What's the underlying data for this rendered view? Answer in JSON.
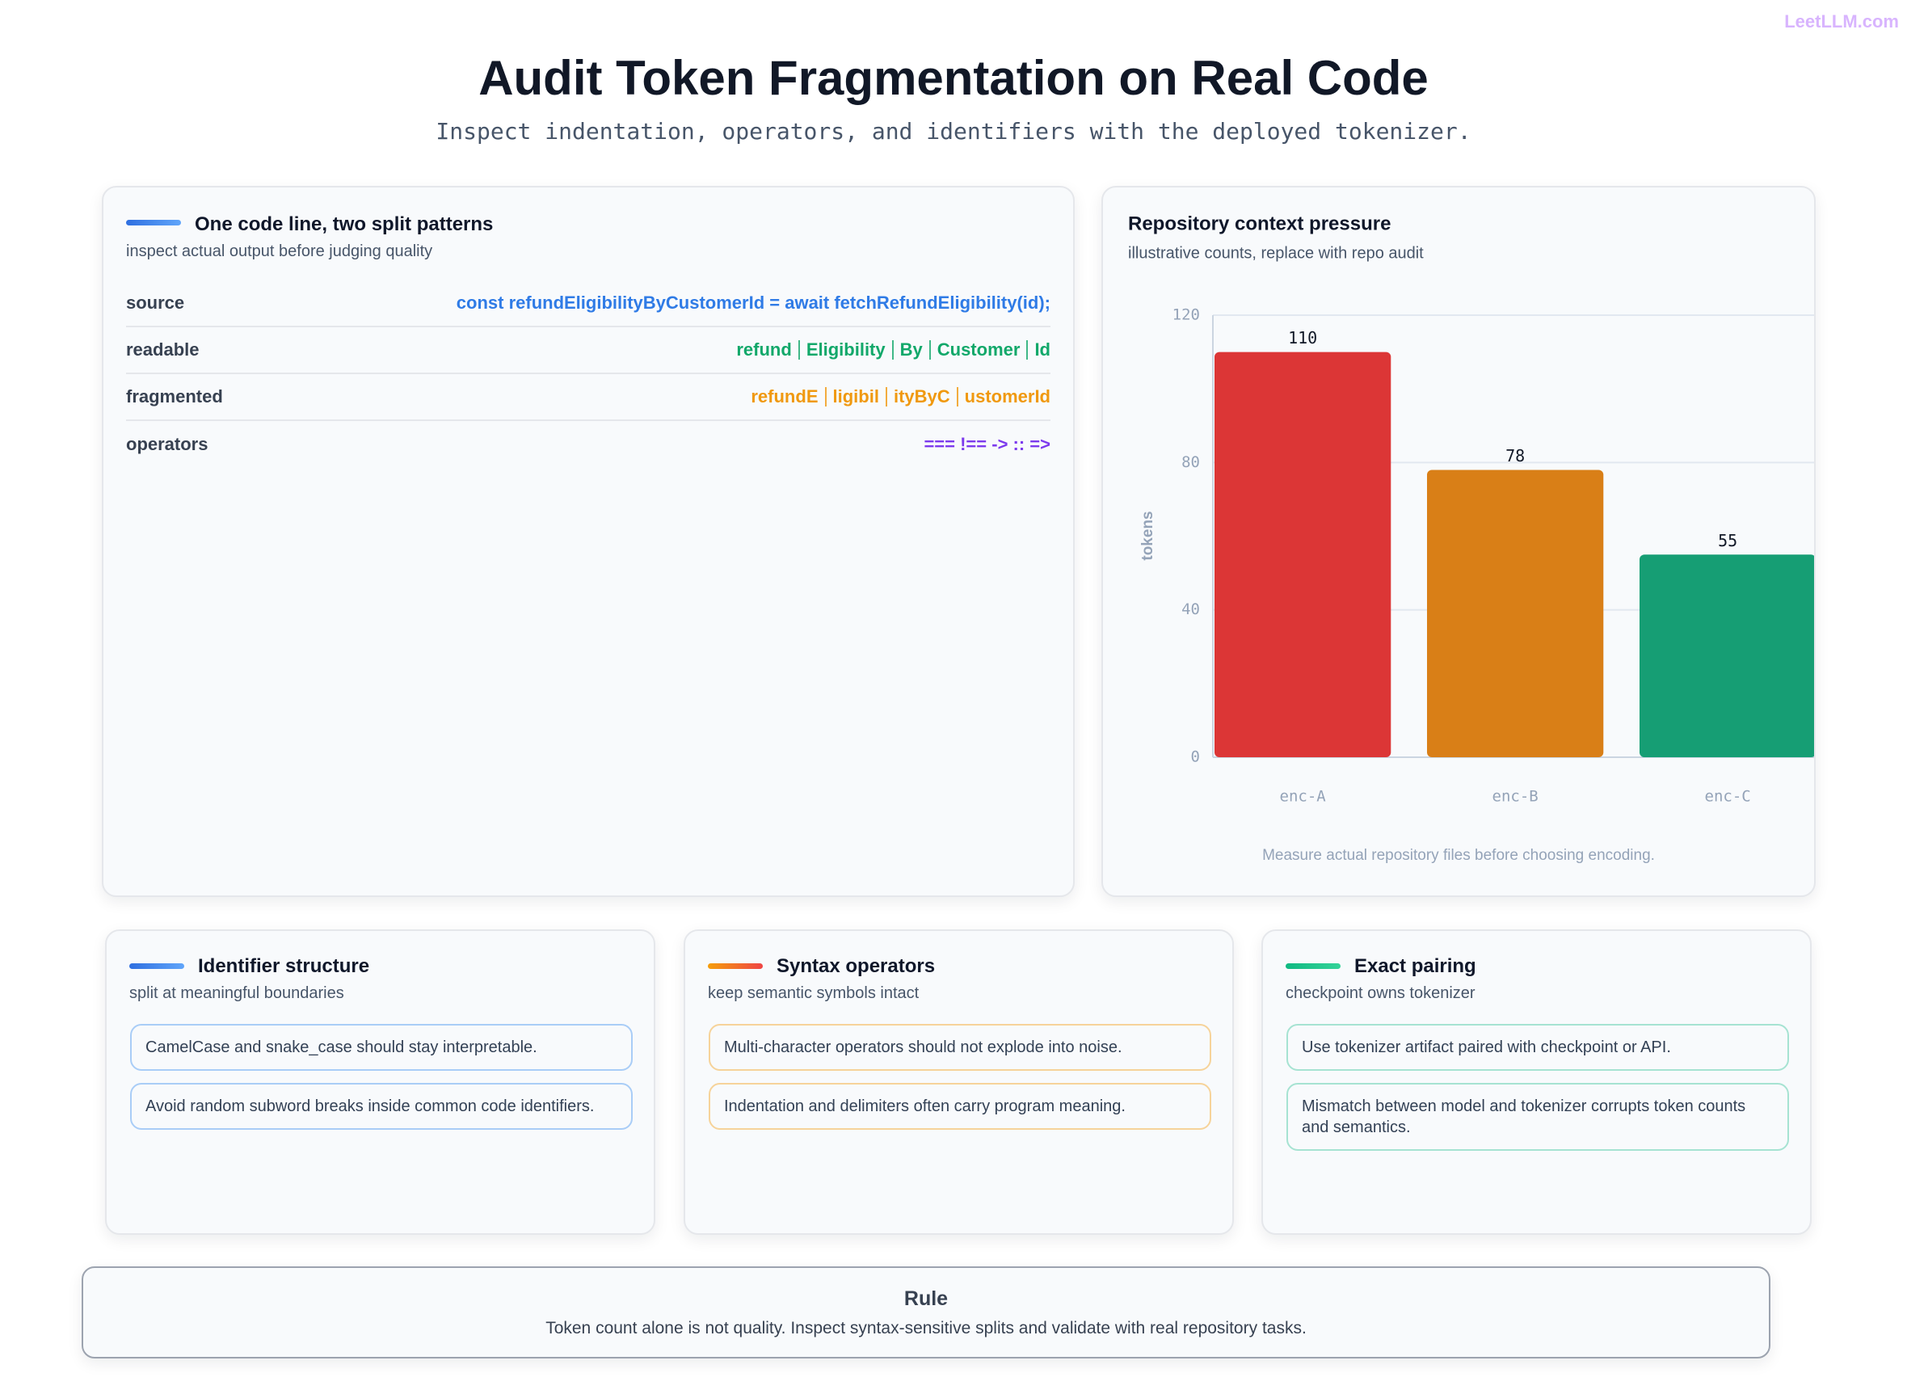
{
  "brand": "LeetLLM.com",
  "header": {
    "title": "Audit Token Fragmentation on Real Code",
    "subtitle": "Inspect indentation, operators, and identifiers with the deployed tokenizer."
  },
  "code_card": {
    "title": "One code line, two split patterns",
    "subtitle": "inspect actual output before judging quality",
    "rows": [
      {
        "label": "source",
        "color": "#2f7be6",
        "value": "const refundEligibilityByCustomerId = await fetchRefundEligibility(id);"
      },
      {
        "label": "readable",
        "color": "#12a86a",
        "tokens": [
          "refund",
          "Eligibility",
          "By",
          "Customer",
          "Id"
        ]
      },
      {
        "label": "fragmented",
        "color": "#f0990f",
        "tokens": [
          "refundE",
          "ligibil",
          "ityByC",
          "ustomerId"
        ]
      },
      {
        "label": "operators",
        "color": "#7c3aed",
        "value": "=== !== -> :: =>"
      }
    ]
  },
  "chart_data": {
    "type": "bar",
    "title": "Repository context pressure",
    "subtitle": "illustrative counts, replace with repo audit",
    "y_label": "tokens",
    "categories": [
      "enc-A",
      "enc-B",
      "enc-C"
    ],
    "values": [
      110,
      78,
      55
    ],
    "colors": [
      "#dc3636",
      "#d97f17",
      "#169e74"
    ],
    "ylim": [
      0,
      120
    ],
    "yticks": [
      0,
      40,
      80,
      120
    ],
    "grid": true,
    "note": "Measure actual repository files before choosing encoding."
  },
  "cards": [
    {
      "title": "Identifier structure",
      "subtitle": "split at meaningful boundaries",
      "accent": [
        "#2f6fe0",
        "#60a5fa"
      ],
      "border": "#a9cdf7",
      "items": [
        "CamelCase and snake_case should stay interpretable.",
        "Avoid random subword breaks inside common code identifiers."
      ]
    },
    {
      "title": "Syntax operators",
      "subtitle": "keep semantic symbols intact",
      "accent": [
        "#f59e0b",
        "#ef4444"
      ],
      "border": "#f6d39a",
      "items": [
        "Multi-character operators should not explode into noise.",
        "Indentation and delimiters often carry program meaning."
      ]
    },
    {
      "title": "Exact pairing",
      "subtitle": "checkpoint owns tokenizer",
      "accent": [
        "#10b981",
        "#34d399"
      ],
      "border": "#a6e3d2",
      "items": [
        "Use tokenizer artifact paired with checkpoint or API.",
        "Mismatch between model and tokenizer corrupts token counts and semantics."
      ]
    }
  ],
  "rule": {
    "title": "Rule",
    "text": "Token count alone is not quality. Inspect syntax-sensitive splits and validate with real repository tasks."
  }
}
